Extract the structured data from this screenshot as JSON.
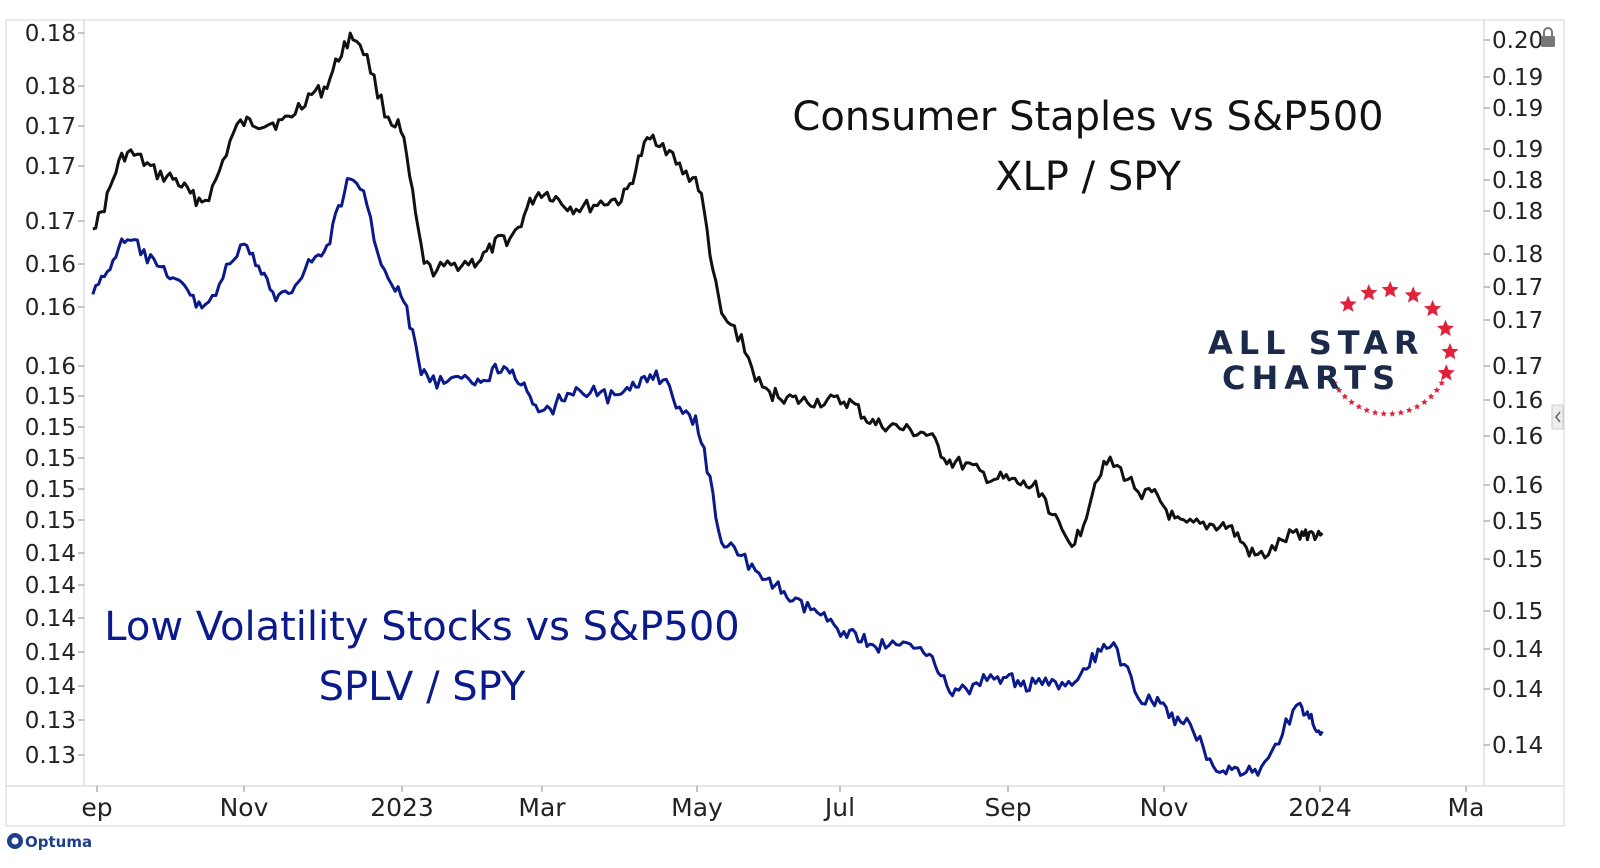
{
  "chart_data": {
    "type": "line",
    "x_axis_labels": [
      "ep",
      "Nov",
      "2023",
      "Mar",
      "May",
      "Jul",
      "Sep",
      "Nov",
      "2024",
      "Ma"
    ],
    "left_axis_ticks": [
      "0.18",
      "0.18",
      "0.17",
      "0.17",
      "0.17",
      "0.16",
      "0.16",
      "0.16",
      "0.15",
      "0.15",
      "0.15",
      "0.15",
      "0.15",
      "0.14",
      "0.14",
      "0.14",
      "0.14",
      "0.14",
      "0.13",
      "0.13"
    ],
    "right_axis_ticks": [
      "0.20",
      "0.19",
      "0.19",
      "0.19",
      "0.18",
      "0.18",
      "0.18",
      "0.17",
      "0.17",
      "0.17",
      "0.16",
      "0.16",
      "0.16",
      "0.15",
      "0.15",
      "0.15",
      "0.14",
      "0.14",
      "0.14"
    ],
    "series": [
      {
        "ticker": "XLP / SPY",
        "color": "#111111",
        "x": [
          "2022-09-01",
          "2022-09-15",
          "2022-10-01",
          "2022-10-15",
          "2022-11-01",
          "2022-11-15",
          "2022-12-01",
          "2022-12-15",
          "2023-01-01",
          "2023-01-15",
          "2023-02-01",
          "2023-02-15",
          "2023-03-01",
          "2023-03-15",
          "2023-04-01",
          "2023-04-15",
          "2023-05-01",
          "2023-05-15",
          "2023-06-01",
          "2023-06-15",
          "2023-07-01",
          "2023-07-15",
          "2023-08-01",
          "2023-08-15",
          "2023-09-01",
          "2023-09-15",
          "2023-10-01",
          "2023-10-15",
          "2023-11-01",
          "2023-11-15",
          "2023-12-01",
          "2023-12-15",
          "2024-01-01",
          "2024-01-10"
        ],
        "y": [
          0.169,
          0.1735,
          0.172,
          0.1705,
          0.1755,
          0.1755,
          0.1775,
          0.181,
          0.1755,
          0.166,
          0.1665,
          0.168,
          0.171,
          0.17,
          0.1705,
          0.1745,
          0.172,
          0.1625,
          0.158,
          0.1575,
          0.1575,
          0.156,
          0.1555,
          0.1535,
          0.1525,
          0.152,
          0.1485,
          0.1535,
          0.1515,
          0.1495,
          0.1495,
          0.1475,
          0.149,
          0.149
        ]
      },
      {
        "ticker": "SPLV / SPY",
        "color": "#0b1a8a",
        "x": [
          "2022-09-01",
          "2022-09-15",
          "2022-10-01",
          "2022-10-15",
          "2022-11-01",
          "2022-11-15",
          "2022-12-01",
          "2022-12-15",
          "2023-01-01",
          "2023-01-15",
          "2023-02-01",
          "2023-02-15",
          "2023-03-01",
          "2023-03-15",
          "2023-04-01",
          "2023-04-15",
          "2023-05-01",
          "2023-05-15",
          "2023-06-01",
          "2023-06-15",
          "2023-07-01",
          "2023-07-15",
          "2023-08-01",
          "2023-08-15",
          "2023-09-01",
          "2023-09-15",
          "2023-10-01",
          "2023-10-15",
          "2023-11-01",
          "2023-11-15",
          "2023-12-01",
          "2023-12-15",
          "2024-01-01",
          "2024-01-10"
        ],
        "y": [
          0.161,
          0.164,
          0.162,
          0.16,
          0.1635,
          0.1605,
          0.163,
          0.168,
          0.161,
          0.155,
          0.155,
          0.156,
          0.153,
          0.1545,
          0.154,
          0.1555,
          0.1525,
          0.1445,
          0.142,
          0.1405,
          0.139,
          0.138,
          0.138,
          0.135,
          0.136,
          0.1355,
          0.1355,
          0.138,
          0.1345,
          0.133,
          0.13,
          0.13,
          0.134,
          0.1325
        ]
      }
    ],
    "annotations": {
      "top_title": "Consumer Staples vs S&P500",
      "top_subtitle": "XLP / SPY",
      "bottom_title": "Low Volatility Stocks vs S&P500",
      "bottom_subtitle": "SPLV / SPY"
    },
    "legend": "none",
    "grid": false
  },
  "brand": {
    "logo_line1": "ALL STAR",
    "logo_line2": "CHARTS",
    "logo_star_color": "#e0233b",
    "logo_text_color": "#1c2a4a",
    "footer": "Optuma"
  }
}
